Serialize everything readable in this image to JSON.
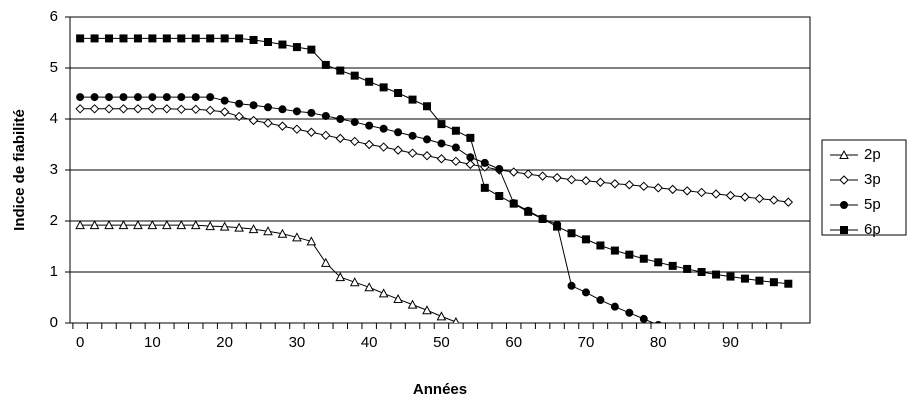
{
  "chart_data": {
    "type": "line",
    "x_label": "Années",
    "y_label": "Indice de fiabilité",
    "x": [
      0,
      2,
      4,
      6,
      8,
      10,
      12,
      14,
      16,
      18,
      20,
      22,
      24,
      26,
      28,
      30,
      32,
      34,
      36,
      38,
      40,
      42,
      44,
      46,
      48,
      50,
      52,
      54,
      56,
      58,
      60,
      62,
      64,
      66,
      68,
      70,
      72,
      74,
      76,
      78,
      80,
      82,
      84,
      86,
      88,
      90,
      92,
      94,
      96,
      98
    ],
    "xlim": [
      -1.4,
      101
    ],
    "xticks": [
      0,
      10,
      20,
      30,
      40,
      50,
      60,
      70,
      80,
      90
    ],
    "ylim": [
      0,
      6
    ],
    "yticks": [
      0,
      1,
      2,
      3,
      4,
      5,
      6
    ],
    "grid": true,
    "legend": "right",
    "series": [
      {
        "name": "2p",
        "color": "#000000",
        "marker": "triangle-open",
        "values": [
          1.92,
          1.92,
          1.92,
          1.92,
          1.92,
          1.92,
          1.92,
          1.92,
          1.92,
          1.9,
          1.89,
          1.87,
          1.84,
          1.8,
          1.75,
          1.68,
          1.6,
          1.18,
          0.9,
          0.8,
          0.7,
          0.58,
          0.47,
          0.36,
          0.25,
          0.13,
          0.02,
          -0.1,
          null,
          null,
          null,
          null,
          null,
          null,
          null,
          null,
          null,
          null,
          null,
          null,
          null,
          null,
          null,
          null,
          null,
          null,
          null,
          null,
          null,
          null
        ]
      },
      {
        "name": "3p",
        "color": "#000000",
        "marker": "diamond-open",
        "values": [
          4.2,
          4.2,
          4.2,
          4.2,
          4.2,
          4.2,
          4.2,
          4.19,
          4.19,
          4.17,
          4.14,
          4.05,
          3.97,
          3.92,
          3.86,
          3.8,
          3.74,
          3.68,
          3.62,
          3.56,
          3.5,
          3.45,
          3.39,
          3.33,
          3.28,
          3.22,
          3.17,
          3.11,
          3.06,
          3.0,
          2.96,
          2.92,
          2.88,
          2.85,
          2.81,
          2.79,
          2.76,
          2.73,
          2.71,
          2.68,
          2.65,
          2.62,
          2.59,
          2.56,
          2.53,
          2.5,
          2.47,
          2.44,
          2.41,
          2.37
        ]
      },
      {
        "name": "5p",
        "color": "#000000",
        "marker": "circle",
        "values": [
          4.43,
          4.43,
          4.43,
          4.43,
          4.43,
          4.43,
          4.43,
          4.43,
          4.43,
          4.43,
          4.36,
          4.3,
          4.27,
          4.23,
          4.19,
          4.15,
          4.12,
          4.06,
          4.0,
          3.94,
          3.87,
          3.81,
          3.74,
          3.67,
          3.6,
          3.52,
          3.44,
          3.25,
          3.14,
          3.02,
          2.35,
          2.2,
          2.05,
          1.93,
          0.73,
          0.6,
          0.45,
          0.32,
          0.2,
          0.08,
          -0.04,
          null,
          null,
          null,
          null,
          null,
          null,
          null,
          null,
          null
        ]
      },
      {
        "name": "6p",
        "color": "#000000",
        "marker": "square",
        "values": [
          5.58,
          5.58,
          5.58,
          5.58,
          5.58,
          5.58,
          5.58,
          5.58,
          5.58,
          5.58,
          5.58,
          5.58,
          5.55,
          5.51,
          5.46,
          5.41,
          5.36,
          5.06,
          4.95,
          4.85,
          4.73,
          4.62,
          4.51,
          4.38,
          4.25,
          3.9,
          3.77,
          3.63,
          2.65,
          2.49,
          2.34,
          2.18,
          2.04,
          1.89,
          1.76,
          1.64,
          1.52,
          1.42,
          1.34,
          1.26,
          1.19,
          1.12,
          1.06,
          1.0,
          0.95,
          0.91,
          0.87,
          0.83,
          0.8,
          0.77
        ]
      }
    ]
  }
}
